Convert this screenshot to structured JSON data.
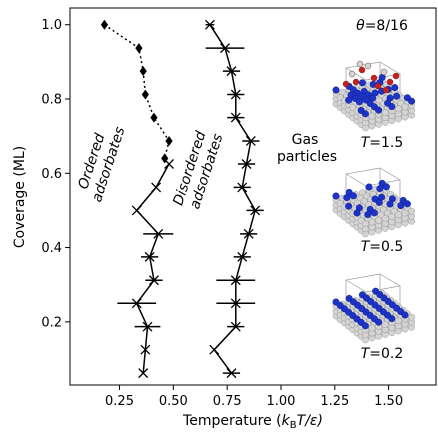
{
  "chart_data": {
    "type": "scatter",
    "xlabel_main": "Temperature (",
    "xlabel_k": "k",
    "xlabel_sub": "B",
    "xlabel_tail": "T/ε)",
    "ylabel": "Coverage (ML)",
    "xlim": [
      0.02,
      1.72
    ],
    "ylim": [
      0.03,
      1.045
    ],
    "xticks": [
      0.25,
      0.5,
      0.75,
      1.0,
      1.25,
      1.5
    ],
    "xtick_labels": [
      "0.25",
      "0.50",
      "0.75",
      "1.00",
      "1.25",
      "1.50"
    ],
    "yticks": [
      0.2,
      0.4,
      0.6,
      0.8,
      1.0
    ],
    "ytick_labels": [
      "0.2",
      "0.4",
      "0.6",
      "0.8",
      "1.0"
    ],
    "series": [
      {
        "marker": "diamond",
        "line": "dotted",
        "points": [
          {
            "x": 0.18,
            "y": 1.0
          },
          {
            "x": 0.34,
            "y": 0.937
          },
          {
            "x": 0.36,
            "y": 0.875
          },
          {
            "x": 0.37,
            "y": 0.812
          },
          {
            "x": 0.41,
            "y": 0.75
          },
          {
            "x": 0.48,
            "y": 0.687
          },
          {
            "x": 0.46,
            "y": 0.64
          }
        ]
      },
      {
        "marker": "x",
        "line": "solid",
        "points": [
          {
            "x": 0.48,
            "y": 0.625,
            "xerr": 0.0
          },
          {
            "x": 0.42,
            "y": 0.562,
            "xerr": 0.0
          },
          {
            "x": 0.33,
            "y": 0.5,
            "xerr": 0.0
          },
          {
            "x": 0.43,
            "y": 0.437,
            "xerr": 0.07
          },
          {
            "x": 0.39,
            "y": 0.375,
            "xerr": 0.04
          },
          {
            "x": 0.41,
            "y": 0.312,
            "xerr": 0.04
          },
          {
            "x": 0.33,
            "y": 0.25,
            "xerr": 0.09
          },
          {
            "x": 0.38,
            "y": 0.187,
            "xerr": 0.06
          },
          {
            "x": 0.37,
            "y": 0.125,
            "xerr": 0.0
          },
          {
            "x": 0.36,
            "y": 0.062,
            "xerr": 0.0
          }
        ]
      },
      {
        "marker": "x",
        "line": "solid",
        "points": [
          {
            "x": 0.67,
            "y": 1.0,
            "xerr": 0.02
          },
          {
            "x": 0.74,
            "y": 0.937,
            "xerr": 0.09
          },
          {
            "x": 0.77,
            "y": 0.875,
            "xerr": 0.04
          },
          {
            "x": 0.79,
            "y": 0.812,
            "xerr": 0.04
          },
          {
            "x": 0.79,
            "y": 0.75,
            "xerr": 0.04
          },
          {
            "x": 0.86,
            "y": 0.687,
            "xerr": 0.04
          },
          {
            "x": 0.84,
            "y": 0.625,
            "xerr": 0.04
          },
          {
            "x": 0.82,
            "y": 0.562,
            "xerr": 0.04
          },
          {
            "x": 0.88,
            "y": 0.5,
            "xerr": 0.04
          },
          {
            "x": 0.85,
            "y": 0.437,
            "xerr": 0.04
          },
          {
            "x": 0.82,
            "y": 0.375,
            "xerr": 0.04
          },
          {
            "x": 0.79,
            "y": 0.312,
            "xerr": 0.09
          },
          {
            "x": 0.79,
            "y": 0.25,
            "xerr": 0.09
          },
          {
            "x": 0.79,
            "y": 0.187,
            "xerr": 0.04
          },
          {
            "x": 0.69,
            "y": 0.125,
            "xerr": 0.0
          },
          {
            "x": 0.77,
            "y": 0.062,
            "xerr": 0.04
          }
        ]
      }
    ],
    "annotations": {
      "ordered_1": "Ordered",
      "ordered_2": "adsorbates",
      "disordered_1": "Disordered",
      "disordered_2": "adsorbates",
      "gas_1": "Gas",
      "gas_2": "particles",
      "theta_sym": "θ",
      "theta_val": "=8/16",
      "t_sym": "T",
      "t15": "=1.5",
      "t05": "=0.5",
      "t02": "=0.2"
    }
  },
  "colors": {
    "axis": "#000000",
    "atom_substrate": "#d4d4d4",
    "atom_adsorbate": "#1d32c8",
    "atom_gas": "#c81e1e"
  }
}
